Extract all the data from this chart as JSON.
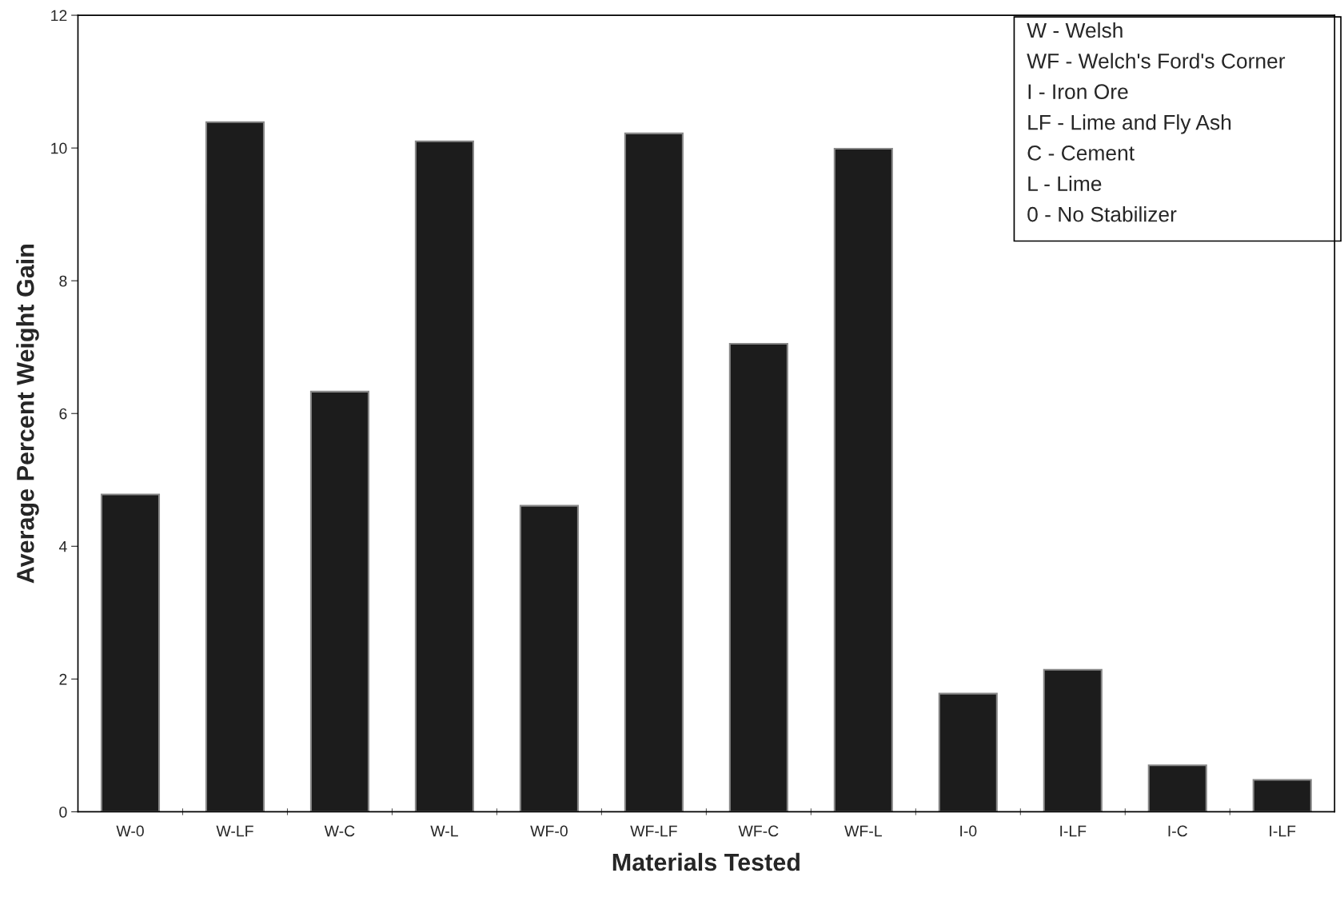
{
  "chart_data": {
    "type": "bar",
    "xlabel": "Materials Tested",
    "ylabel": "Average Percent Weight Gain",
    "categories": [
      "W-0",
      "W-LF",
      "W-C",
      "W-L",
      "WF-0",
      "WF-LF",
      "WF-C",
      "WF-L",
      "I-0",
      "I-LF",
      "I-C",
      "I-LF"
    ],
    "values": [
      4.78,
      10.39,
      6.33,
      10.1,
      4.61,
      10.22,
      7.05,
      9.99,
      1.78,
      2.14,
      0.7,
      0.48
    ],
    "color": "#1c1c1c",
    "ylim": [
      0,
      12
    ],
    "yticks": [
      0,
      2,
      4,
      6,
      8,
      10,
      12
    ],
    "grid": false,
    "annotations": [
      "W - Welsh",
      "WF - Welch's Ford's Corner",
      "I - Iron Ore",
      "LF - Lime and Fly Ash",
      "C - Cement",
      "L - Lime",
      "0 - No Stabilizer"
    ]
  }
}
